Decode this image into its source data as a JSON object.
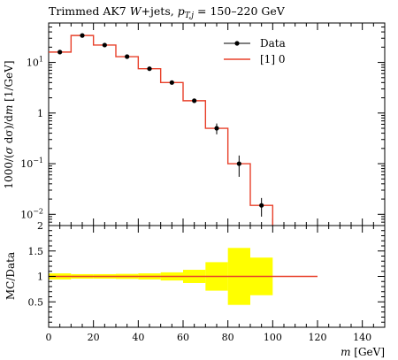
{
  "chart_data": [
    {
      "type": "line",
      "panel": "main",
      "title": "Trimmed AK7 W+jets, p_T,j = 150–220 GeV",
      "title_parts": {
        "pre": "Trimmed AK7 ",
        "w": "W",
        "jets": "+jets, ",
        "p": "p",
        "sub": "T,j",
        "post": " = 150–220 GeV"
      },
      "ylabel": "1000/σ dσ/dm [1/GeV]",
      "ylabel_parts": {
        "a": "1000/(",
        "sig": "σ",
        "b": " dσ)/d",
        "m": "m",
        "c": " [1/GeV]"
      },
      "yscale": "log",
      "ylim": [
        0.006,
        60
      ],
      "xlim": [
        0,
        150
      ],
      "yticks": [
        {
          "v": 10,
          "base": "10",
          "exp": "1"
        },
        {
          "v": 1,
          "base": "1",
          "exp": ""
        },
        {
          "v": 0.1,
          "base": "10",
          "exp": "−1"
        },
        {
          "v": 0.01,
          "base": "10",
          "exp": "−2"
        }
      ],
      "legend": {
        "position": "top-right",
        "entries": [
          "Data",
          "[1] 0"
        ]
      },
      "series": [
        {
          "name": "Data",
          "kind": "points",
          "x": [
            5,
            15,
            25,
            35,
            45,
            55,
            65,
            75,
            85,
            95
          ],
          "y": [
            16,
            34,
            22,
            13,
            7.5,
            4.0,
            1.75,
            0.5,
            0.1,
            0.015
          ],
          "err": [
            1.0,
            1.5,
            1.0,
            0.7,
            0.5,
            0.3,
            0.15,
            0.12,
            0.045,
            0.006
          ]
        },
        {
          "name": "[1] 0",
          "kind": "histogram",
          "color": "#e8402a",
          "edges": [
            0,
            10,
            20,
            30,
            40,
            50,
            60,
            70,
            80,
            90,
            100
          ],
          "values": [
            16,
            34,
            22,
            13,
            7.5,
            4.0,
            1.75,
            0.5,
            0.1,
            0.015
          ]
        }
      ]
    },
    {
      "type": "line",
      "panel": "ratio",
      "xlabel": "m [GeV]",
      "xlabel_parts": {
        "m": "m",
        "unit": " [GeV]"
      },
      "ylabel": "MC/Data",
      "xlim": [
        0,
        150
      ],
      "ylim": [
        0,
        2
      ],
      "xticks": [
        0,
        20,
        40,
        60,
        80,
        100,
        120,
        140
      ],
      "yticks": [
        {
          "v": 0.5,
          "label": "0.5"
        },
        {
          "v": 1,
          "label": "1"
        },
        {
          "v": 1.5,
          "label": "1.5"
        },
        {
          "v": 2,
          "label": "2"
        }
      ],
      "band_color": "#ffff00",
      "line_color": "#e8402a",
      "band": {
        "edges": [
          0,
          10,
          20,
          30,
          40,
          50,
          60,
          70,
          80,
          90,
          100
        ],
        "half_width": [
          0.06,
          0.045,
          0.045,
          0.05,
          0.06,
          0.08,
          0.13,
          0.28,
          0.56,
          0.37
        ]
      },
      "ratio_line": {
        "x": [
          0,
          120
        ],
        "y": [
          1,
          1
        ]
      }
    }
  ]
}
